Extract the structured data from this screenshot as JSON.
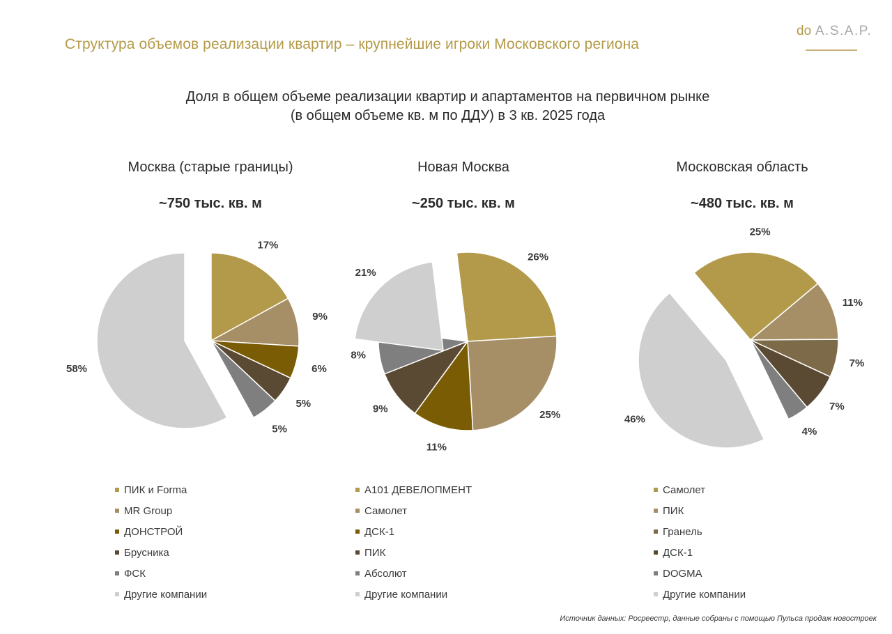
{
  "header": {
    "title": "Структура объемов реализации квартир – крупнейшие игроки Московского региона",
    "logo_prefix": "do",
    "logo_main": "A.S.A.P."
  },
  "chart_heading": {
    "line1": "Доля в общем объеме реализации квартир и апартаментов на первичном рынке",
    "line2": "(в общем объеме кв. м по ДДУ) в 3 кв. 2025 года"
  },
  "chart_data": [
    {
      "type": "pie",
      "title": "Москва (старые границы)",
      "total": "~750 тыс. кв. м",
      "unit": "%",
      "labels": [
        "ПИК и Forma",
        "MR  Group",
        "ДОНСТРОЙ",
        "Брусника",
        "ФСК",
        "Другие компании"
      ],
      "values": [
        17,
        9,
        6,
        5,
        5,
        58
      ],
      "colors": [
        "#b39a4a",
        "#a68f66",
        "#7a5c05",
        "#5b4a33",
        "#7f7f7f",
        "#d0cfcf"
      ],
      "exploded": "Другие компании"
    },
    {
      "type": "pie",
      "title": "Новая Москва",
      "total": "~250 тыс. кв. м",
      "unit": "%",
      "labels": [
        "А101 ДЕВЕЛОПМЕНТ",
        "Самолет",
        "ДСК-1",
        "ПИК",
        "Абсолют",
        "Другие компании"
      ],
      "values": [
        26,
        25,
        11,
        9,
        8,
        21
      ],
      "colors": [
        "#b39a4a",
        "#a68f66",
        "#7a5c05",
        "#5b4a33",
        "#7f7f7f",
        "#d0cfcf"
      ],
      "exploded": "Другие компании"
    },
    {
      "type": "pie",
      "title": "Московская область",
      "total": "~480 тыс. кв. м",
      "unit": "%",
      "labels": [
        "Самолет",
        "ПИК",
        "Гранель",
        "ДСК-1",
        "DOGMA",
        "Другие компании"
      ],
      "values": [
        25,
        11,
        7,
        7,
        4,
        46
      ],
      "colors": [
        "#b39a4a",
        "#a68f66",
        "#7d6a48",
        "#5b4a33",
        "#7f7f7f",
        "#d0cfcf"
      ],
      "exploded": "Другие компании"
    }
  ],
  "footer": {
    "source": "Источник данных: Росреестр, данные собраны с помощью Пульса продаж новостроек"
  }
}
